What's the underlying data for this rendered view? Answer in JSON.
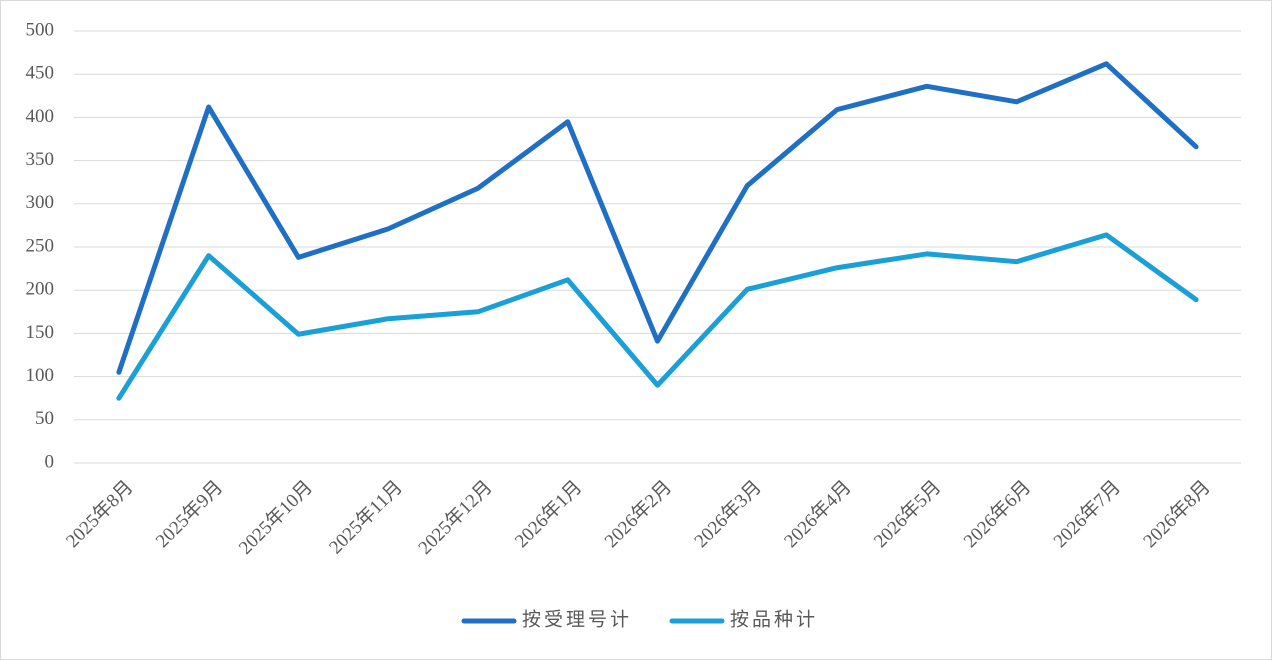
{
  "chart_data": {
    "type": "line",
    "categories": [
      "2025年8月",
      "2025年9月",
      "2025年10月",
      "2025年11月",
      "2025年12月",
      "2026年1月",
      "2026年2月",
      "2026年3月",
      "2026年4月",
      "2026年5月",
      "2026年6月",
      "2026年7月",
      "2026年8月"
    ],
    "series": [
      {
        "name": "按受理号计",
        "color": "#1f6fc5",
        "values": [
          105,
          412,
          238,
          271,
          318,
          395,
          141,
          321,
          409,
          436,
          418,
          462,
          366
        ]
      },
      {
        "name": "按品种计",
        "color": "#1a9fd6",
        "values": [
          75,
          240,
          149,
          167,
          175,
          212,
          90,
          201,
          226,
          242,
          233,
          264,
          189
        ]
      }
    ],
    "ylim": [
      0,
      500
    ],
    "yticks": [
      0,
      50,
      100,
      150,
      200,
      250,
      300,
      350,
      400,
      450,
      500
    ],
    "grid": true,
    "legend": "bottom"
  }
}
